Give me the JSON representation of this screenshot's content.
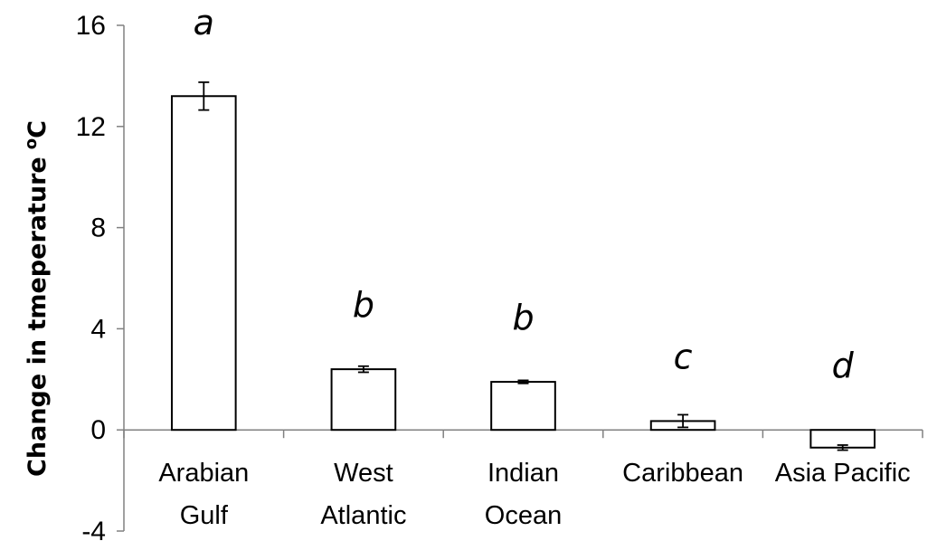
{
  "chart_data": {
    "type": "bar",
    "categories": [
      [
        "Arabian",
        "Gulf"
      ],
      [
        "West",
        "Atlantic"
      ],
      [
        "Indian",
        "Ocean"
      ],
      [
        "Caribbean"
      ],
      [
        "Asia Pacific"
      ]
    ],
    "values": [
      13.2,
      2.4,
      1.9,
      0.35,
      -0.7
    ],
    "errors": [
      0.55,
      0.12,
      0.06,
      0.25,
      0.1
    ],
    "significance": [
      "a",
      "b",
      "b",
      "c",
      "d"
    ],
    "ylabel": "Change in tmeperature",
    "ylabel_unit": "C",
    "ylabel_unit_sup": "o",
    "ylim": [
      -4,
      16
    ],
    "yticks": [
      "16",
      "12",
      "8",
      "4",
      "0",
      "-4"
    ],
    "bar_fill": "#ffffff",
    "bar_stroke": "#000000"
  }
}
